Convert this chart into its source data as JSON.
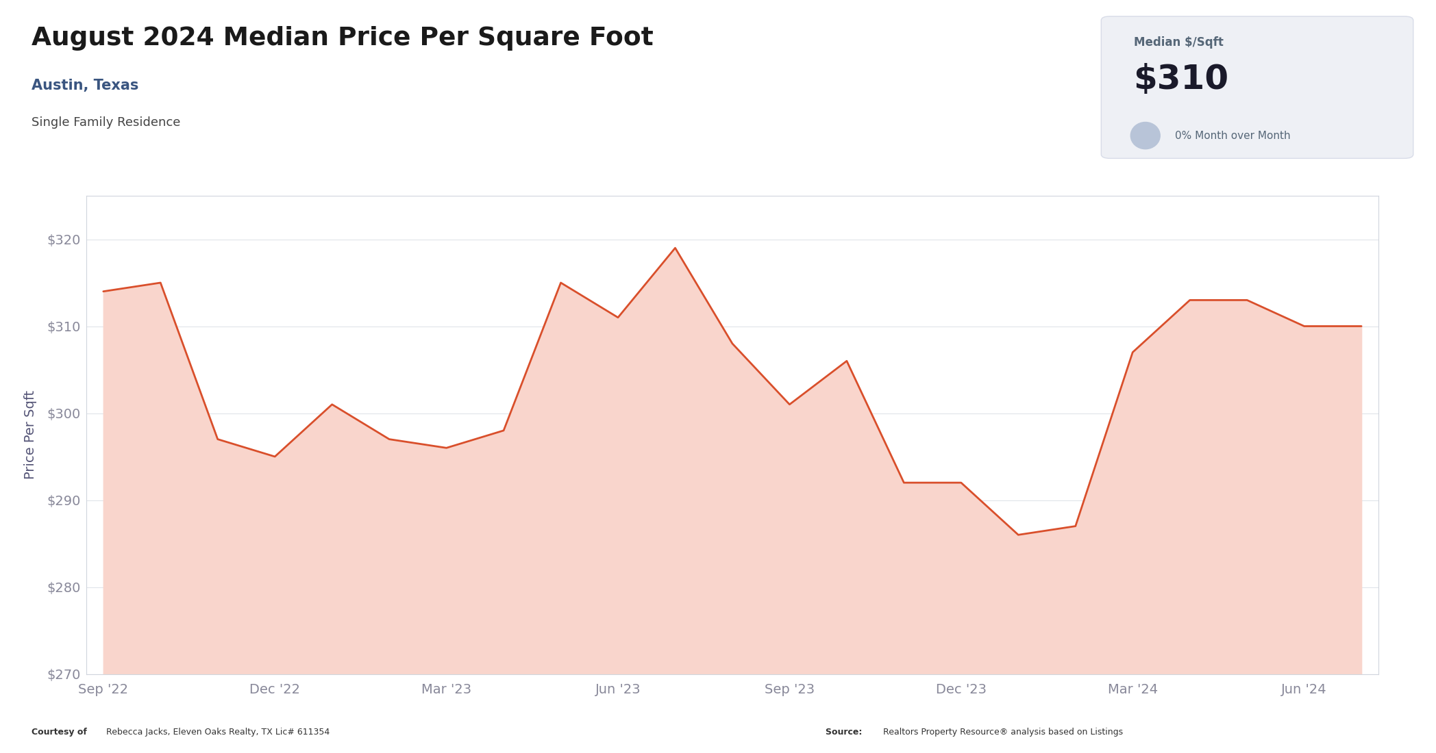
{
  "title": "August 2024 Median Price Per Square Foot",
  "subtitle": "Austin, Texas",
  "subtitle2": "Single Family Residence",
  "ylabel": "Price Per Sqft",
  "box_label": "Median $/Sqft",
  "box_value": "$310",
  "box_mom": "0% Month over Month",
  "footer_left_bold": "Courtesy of ",
  "footer_left_normal": "Rebecca Jacks, Eleven Oaks Realty, TX Lic# 611354",
  "footer_right_bold": "Source: ",
  "footer_right_normal": "Realtors Property Resource® analysis based on Listings",
  "x_labels": [
    "Sep '22",
    "Dec '22",
    "Mar '23",
    "Jun '23",
    "Sep '23",
    "Dec '23",
    "Mar '24",
    "Jun '24"
  ],
  "x_positions": [
    0,
    3,
    6,
    9,
    12,
    15,
    18,
    21
  ],
  "data_x": [
    0,
    1,
    2,
    3,
    4,
    5,
    6,
    7,
    8,
    9,
    10,
    11,
    12,
    13,
    14,
    15,
    16,
    17,
    18,
    19,
    20,
    21,
    22
  ],
  "data_y": [
    314,
    315,
    297,
    295,
    301,
    297,
    296,
    298,
    315,
    311,
    319,
    308,
    301,
    306,
    292,
    292,
    286,
    287,
    307,
    313,
    313,
    310,
    310
  ],
  "line_color": "#d94f2b",
  "fill_color": "#f9d5cc",
  "background_color": "#ffffff",
  "chart_bg": "#ffffff",
  "chart_border_color": "#d0d5dd",
  "grid_color": "#e0e4ea",
  "ylim_min": 270,
  "ylim_max": 325,
  "ytick_vals": [
    270,
    280,
    290,
    300,
    310,
    320
  ],
  "title_color": "#1a1a1a",
  "subtitle_color": "#c0392b",
  "subtitle2_color": "#444444",
  "axis_label_color": "#555577",
  "axis_tick_color": "#888899",
  "box_bg": "#eef0f5",
  "box_border_color": "#d8dce8",
  "box_label_color": "#556677",
  "box_value_color": "#1a1a2a",
  "box_mom_color": "#556677",
  "circle_color": "#b8c4d8",
  "footer_color": "#333333"
}
